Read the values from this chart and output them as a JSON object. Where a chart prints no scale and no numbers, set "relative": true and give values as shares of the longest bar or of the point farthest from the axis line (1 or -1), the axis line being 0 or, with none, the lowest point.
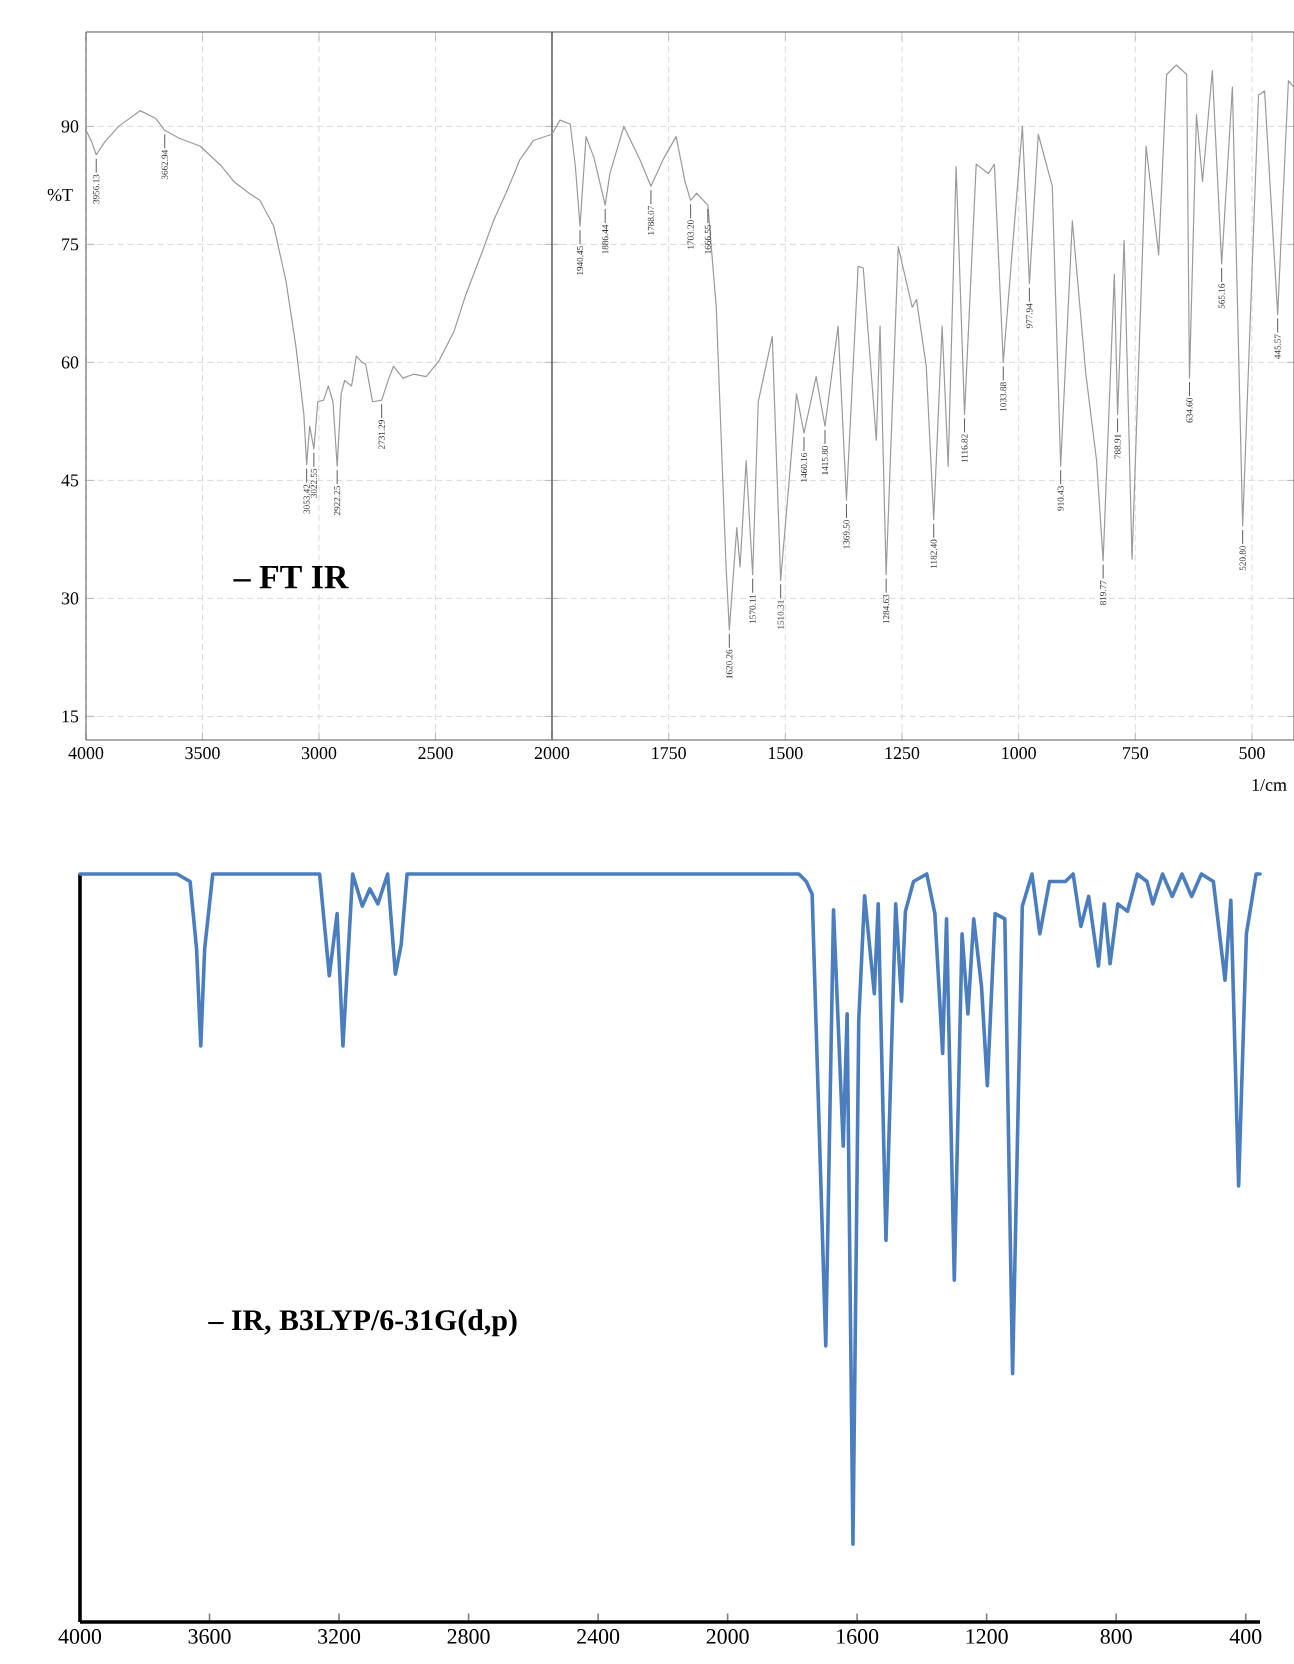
{
  "chart_data": [
    {
      "type": "line",
      "title": "– FT IR",
      "ylabel": "%T",
      "color": "#9a9a9a",
      "grid": true,
      "xlim": [
        4000,
        2000
      ],
      "xticks": [
        4000,
        3500,
        3000,
        2500,
        2000
      ],
      "ylim": [
        12,
        102
      ],
      "yticks": [
        15,
        30,
        45,
        60,
        75,
        90
      ],
      "x": [
        4000,
        3975,
        3956,
        3920,
        3860,
        3768,
        3700,
        3662,
        3600,
        3511,
        3420,
        3366,
        3300,
        3254,
        3194,
        3142,
        3099,
        3065,
        3053,
        3040,
        3022,
        3005,
        2980,
        2960,
        2940,
        2922,
        2905,
        2890,
        2860,
        2840,
        2815,
        2800,
        2770,
        2731,
        2700,
        2680,
        2640,
        2594,
        2540,
        2483,
        2420,
        2370,
        2300,
        2251,
        2190,
        2139,
        2080,
        2000
      ],
      "values": [
        89.5,
        88,
        86.4,
        88,
        90,
        92,
        91,
        89.5,
        88.5,
        87.5,
        85,
        83,
        81.5,
        80.6,
        77.3,
        70.4,
        62,
        53.4,
        47,
        51.9,
        49,
        55,
        55.2,
        57,
        55,
        46.8,
        56,
        57.7,
        57,
        60.8,
        60,
        59.8,
        55,
        55.2,
        58,
        59.5,
        58,
        58.5,
        58.2,
        60.3,
        64,
        68.6,
        74,
        78,
        82,
        85.7,
        88.2,
        89
      ],
      "annotations": [
        {
          "text": "3956.13",
          "x": 3956,
          "y": 86.4
        },
        {
          "text": "3662.94",
          "x": 3662,
          "y": 89.5
        },
        {
          "text": "3053.42",
          "x": 3053,
          "y": 47
        },
        {
          "text": "3022.55",
          "x": 3022,
          "y": 49
        },
        {
          "text": "2922.25",
          "x": 2922,
          "y": 46.8
        },
        {
          "text": "2731.29",
          "x": 2731,
          "y": 55.2
        }
      ]
    },
    {
      "type": "line",
      "xlabel": "1/cm",
      "color": "#9a9a9a",
      "grid": true,
      "tick_labels": "x",
      "xlim": [
        2000,
        410
      ],
      "xticks": [
        {
          "value": 2000,
          "label": null
        },
        1750,
        1500,
        1250,
        1000,
        750,
        500
      ],
      "ylim": [
        12,
        102
      ],
      "yticks": [
        15,
        30,
        45,
        60,
        75,
        90
      ],
      "x": [
        2000,
        1983,
        1961,
        1950,
        1940,
        1927,
        1910,
        1886,
        1876,
        1846,
        1811,
        1788,
        1760,
        1734,
        1715,
        1703,
        1690,
        1666,
        1648,
        1627,
        1620,
        1604,
        1597,
        1584,
        1570,
        1558,
        1528,
        1510,
        1476,
        1460,
        1434,
        1415,
        1387,
        1369,
        1344,
        1333,
        1305,
        1297,
        1284,
        1258,
        1228,
        1219,
        1198,
        1182,
        1164,
        1151,
        1134,
        1116,
        1091,
        1065,
        1052,
        1033,
        1005,
        992,
        977,
        958,
        928,
        910,
        885,
        856,
        833,
        819,
        795,
        788,
        774,
        757,
        727,
        700,
        683,
        662,
        640,
        634,
        619,
        606,
        585,
        565,
        542,
        520,
        486,
        473,
        445,
        422,
        410
      ],
      "values": [
        89,
        90.8,
        90.3,
        85,
        77.3,
        88.7,
        86,
        80,
        84,
        90,
        85.7,
        82.4,
        86,
        88.7,
        83,
        80.6,
        81.5,
        80,
        67,
        34,
        26,
        39,
        34,
        47.5,
        33,
        55,
        63.3,
        32.3,
        56,
        51,
        58.2,
        51.9,
        64.6,
        42.5,
        72.2,
        72,
        50.1,
        64.6,
        33,
        74.7,
        67,
        68,
        59.5,
        40,
        64.6,
        46.8,
        84.9,
        53.4,
        85.2,
        84,
        85.2,
        60,
        80.6,
        90,
        70,
        89,
        82.4,
        46.8,
        78,
        58.5,
        47.5,
        34.8,
        71.2,
        53.4,
        75.5,
        35,
        87.5,
        73.7,
        96.6,
        97.8,
        96.6,
        58,
        91.5,
        83,
        97.1,
        72.5,
        95,
        39.2,
        94,
        94.5,
        66.1,
        95.8,
        95
      ],
      "annotations": [
        {
          "text": "1940.45",
          "x": 1940,
          "y": 77.3
        },
        {
          "text": "1886.44",
          "x": 1886,
          "y": 80
        },
        {
          "text": "1788.07",
          "x": 1788,
          "y": 82.4
        },
        {
          "text": "1703.20",
          "x": 1703,
          "y": 80.6
        },
        {
          "text": "1666.55",
          "x": 1666,
          "y": 80
        },
        {
          "text": "1620.26",
          "x": 1620,
          "y": 26
        },
        {
          "text": "1570.11",
          "x": 1570,
          "y": 33
        },
        {
          "text": "1510.31",
          "x": 1510,
          "y": 32.3
        },
        {
          "text": "1460.16",
          "x": 1460,
          "y": 51
        },
        {
          "text": "1415.80",
          "x": 1415,
          "y": 51.9
        },
        {
          "text": "1369.50",
          "x": 1369,
          "y": 42.5
        },
        {
          "text": "1284.63",
          "x": 1284,
          "y": 33
        },
        {
          "text": "1182.40",
          "x": 1182,
          "y": 40
        },
        {
          "text": "1116.82",
          "x": 1116,
          "y": 53.4
        },
        {
          "text": "1033.88",
          "x": 1033,
          "y": 60
        },
        {
          "text": "977.94",
          "x": 977,
          "y": 70
        },
        {
          "text": "910.43",
          "x": 910,
          "y": 46.8
        },
        {
          "text": "819.77",
          "x": 819,
          "y": 34.8
        },
        {
          "text": "788.91",
          "x": 788,
          "y": 53.4
        },
        {
          "text": "634.60",
          "x": 634,
          "y": 58
        },
        {
          "text": "565.16",
          "x": 565,
          "y": 72.5
        },
        {
          "text": "520.80",
          "x": 520,
          "y": 39.2
        },
        {
          "text": "445.57",
          "x": 445,
          "y": 66.1
        }
      ]
    },
    {
      "type": "line",
      "title": "– IR, B3LYP/6-31G(d,p)",
      "color": "#4a7ebf",
      "relative": true,
      "xlim": [
        4000,
        356
      ],
      "xticks": [
        4000,
        3600,
        3200,
        2800,
        2400,
        2000,
        1600,
        1200,
        800,
        400
      ],
      "x": [
        4000,
        3700,
        3660,
        3640,
        3627,
        3615,
        3590,
        3260,
        3230,
        3206,
        3188,
        3158,
        3128,
        3105,
        3080,
        3050,
        3026,
        3008,
        2990,
        1780,
        1757,
        1739,
        1697,
        1673,
        1643,
        1631,
        1613,
        1595,
        1577,
        1547,
        1535,
        1511,
        1481,
        1463,
        1451,
        1426,
        1385,
        1360,
        1336,
        1324,
        1300,
        1276,
        1258,
        1240,
        1216,
        1198,
        1174,
        1144,
        1120,
        1090,
        1060,
        1036,
        1006,
        957,
        933,
        909,
        885,
        855,
        837,
        819,
        795,
        765,
        735,
        705,
        687,
        657,
        627,
        597,
        567,
        537,
        500,
        464,
        446,
        422,
        398,
        368,
        356
      ],
      "values": [
        1,
        1,
        0.99,
        0.9,
        0.77,
        0.9,
        1,
        1,
        0.864,
        0.947,
        0.77,
        1,
        0.957,
        0.98,
        0.96,
        1,
        0.866,
        0.906,
        1,
        1,
        0.99,
        0.973,
        0.369,
        0.952,
        0.636,
        0.813,
        0.104,
        0.805,
        0.971,
        0.84,
        0.96,
        0.51,
        0.96,
        0.83,
        0.95,
        0.99,
        1,
        0.947,
        0.76,
        0.94,
        0.457,
        0.92,
        0.813,
        0.94,
        0.85,
        0.717,
        0.947,
        0.94,
        0.332,
        0.957,
        1,
        0.92,
        0.99,
        0.99,
        1,
        0.93,
        0.97,
        0.877,
        0.96,
        0.88,
        0.96,
        0.95,
        1,
        0.99,
        0.96,
        1,
        0.97,
        1,
        0.97,
        1,
        0.99,
        0.858,
        0.965,
        0.583,
        0.92,
        1,
        1
      ]
    }
  ]
}
